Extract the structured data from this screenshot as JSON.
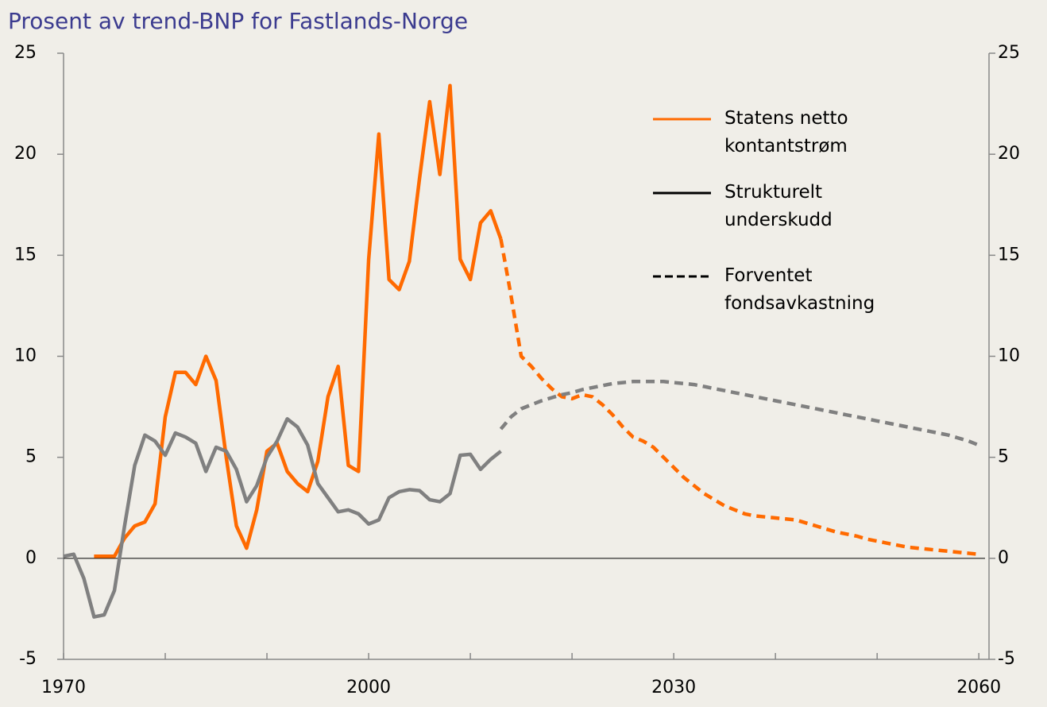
{
  "chart_data": {
    "type": "line",
    "title": "Prosent av trend-BNP for Fastlands-Norge",
    "xlim": [
      1970,
      2061
    ],
    "xticks": [
      1970,
      2000,
      2030,
      2060
    ],
    "xminor_ticks": [
      1970,
      1980,
      1990,
      2000,
      2010,
      2020,
      2030,
      2040,
      2050,
      2060
    ],
    "ylim": [
      -5,
      25
    ],
    "yticks": [
      -5,
      0,
      5,
      10,
      15,
      20,
      25
    ],
    "legend": [
      {
        "label": "Statens netto kontantstrøm",
        "color": "#ff6a00",
        "dashed": false
      },
      {
        "label": "Strukturelt underskudd",
        "color": "#000000",
        "dashed": false
      },
      {
        "label": "Forventet fondsavkastning",
        "color": "#000000",
        "dashed": true
      }
    ],
    "series": [
      {
        "color": "#ff6a00",
        "dashed": false,
        "x": [
          1973,
          1974,
          1975,
          1976,
          1977,
          1978,
          1979,
          1980,
          1981,
          1982,
          1983,
          1984,
          1985,
          1986,
          1987,
          1988,
          1989,
          1990,
          1991,
          1992,
          1993,
          1994,
          1995,
          1996,
          1997,
          1998,
          1999,
          2000,
          2001,
          2002,
          2003,
          2004,
          2005,
          2006,
          2007,
          2008,
          2009,
          2010,
          2011,
          2012,
          2013
        ],
        "values": [
          0.1,
          0.1,
          0.1,
          1.0,
          1.6,
          1.8,
          2.7,
          7.0,
          9.2,
          9.2,
          8.6,
          10.0,
          8.8,
          5.0,
          1.6,
          0.5,
          2.4,
          5.3,
          5.7,
          4.3,
          3.7,
          3.3,
          4.8,
          8.0,
          9.5,
          4.6,
          4.3,
          14.8,
          21.0,
          13.8,
          13.3,
          14.7,
          18.8,
          22.6,
          19.0,
          23.4,
          14.8,
          13.8,
          16.6,
          17.2,
          15.8
        ]
      },
      {
        "color": "#ff6a00",
        "dashed": true,
        "x": [
          2013,
          2014,
          2015,
          2016,
          2017,
          2018,
          2019,
          2020,
          2021,
          2022,
          2023,
          2024,
          2025,
          2026,
          2027,
          2028,
          2029,
          2030,
          2031,
          2032,
          2033,
          2034,
          2035,
          2036,
          2037,
          2038,
          2039,
          2040,
          2041,
          2042,
          2043,
          2044,
          2045,
          2046,
          2047,
          2048,
          2049,
          2050,
          2051,
          2052,
          2053,
          2054,
          2055,
          2056,
          2057,
          2058,
          2059,
          2060
        ],
        "values": [
          15.8,
          13.0,
          10.0,
          9.5,
          8.9,
          8.4,
          8.0,
          7.9,
          8.1,
          8.0,
          7.6,
          7.1,
          6.5,
          6.0,
          5.8,
          5.5,
          5.0,
          4.5,
          4.0,
          3.6,
          3.2,
          2.9,
          2.6,
          2.4,
          2.2,
          2.1,
          2.05,
          2.0,
          1.95,
          1.9,
          1.75,
          1.6,
          1.45,
          1.3,
          1.2,
          1.1,
          0.95,
          0.85,
          0.75,
          0.65,
          0.55,
          0.5,
          0.45,
          0.4,
          0.35,
          0.3,
          0.25,
          0.2
        ]
      },
      {
        "color": "#808080",
        "dashed": false,
        "x": [
          1970,
          1971,
          1972,
          1973,
          1974,
          1975,
          1976,
          1977,
          1978,
          1979,
          1980,
          1981,
          1982,
          1983,
          1984,
          1985,
          1986,
          1987,
          1988,
          1989,
          1990,
          1991,
          1992,
          1993,
          1994,
          1995,
          1996,
          1997,
          1998,
          1999,
          2000,
          2001,
          2002,
          2003,
          2004,
          2005,
          2006,
          2007,
          2008,
          2009,
          2010,
          2011,
          2012,
          2013
        ],
        "values": [
          0.1,
          0.2,
          -1.0,
          -2.9,
          -2.8,
          -1.6,
          1.6,
          4.6,
          6.1,
          5.8,
          5.1,
          6.2,
          6.0,
          5.7,
          4.3,
          5.5,
          5.3,
          4.4,
          2.8,
          3.6,
          5.0,
          5.8,
          6.9,
          6.5,
          5.6,
          3.7,
          3.0,
          2.3,
          2.4,
          2.2,
          1.7,
          1.9,
          3.0,
          3.3,
          3.4,
          3.35,
          2.9,
          2.8,
          3.2,
          5.1,
          5.15,
          4.4,
          4.9,
          5.3
        ]
      },
      {
        "color": "#808080",
        "dashed": true,
        "x": [
          2013,
          2014,
          2015,
          2016,
          2017,
          2018,
          2019,
          2020,
          2021,
          2022,
          2023,
          2024,
          2025,
          2026,
          2027,
          2028,
          2029,
          2030,
          2031,
          2032,
          2033,
          2034,
          2035,
          2036,
          2037,
          2038,
          2039,
          2040,
          2041,
          2042,
          2043,
          2044,
          2045,
          2046,
          2047,
          2048,
          2049,
          2050,
          2051,
          2052,
          2053,
          2054,
          2055,
          2056,
          2057,
          2058,
          2059,
          2060
        ],
        "values": [
          6.4,
          7.0,
          7.4,
          7.6,
          7.8,
          7.95,
          8.1,
          8.2,
          8.35,
          8.45,
          8.55,
          8.65,
          8.7,
          8.75,
          8.75,
          8.75,
          8.75,
          8.7,
          8.65,
          8.6,
          8.5,
          8.4,
          8.3,
          8.2,
          8.1,
          8.0,
          7.9,
          7.8,
          7.7,
          7.6,
          7.5,
          7.4,
          7.3,
          7.2,
          7.1,
          7.0,
          6.9,
          6.8,
          6.7,
          6.6,
          6.5,
          6.4,
          6.3,
          6.2,
          6.1,
          5.95,
          5.8,
          5.6
        ]
      }
    ]
  }
}
